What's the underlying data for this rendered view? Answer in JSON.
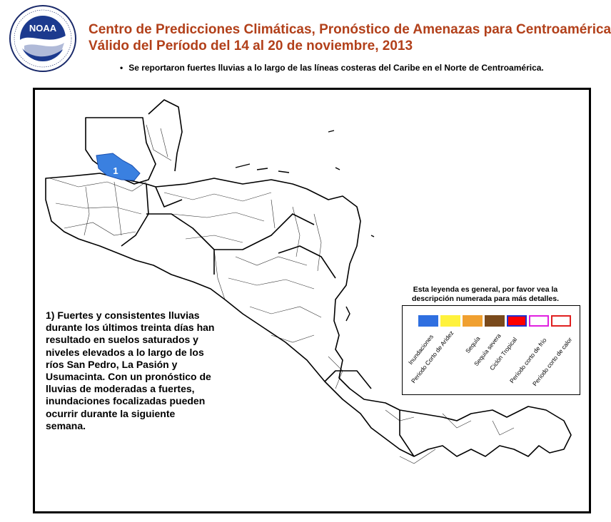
{
  "header": {
    "title_line1": "Centro de Predicciones Climáticas, Pronóstico de Amenazas para Centroamérica",
    "title_line2": "Válido del Período del 14 al 20 de noviembre, 2013",
    "bullet": "Se reportaron fuertes lluvias a lo largo de las líneas costeras del Caribe en el Norte de Centroamérica."
  },
  "logo": {
    "text": "NOAA",
    "ring_top": "NATIONAL OCEANIC AND ATMOSPHERIC ADMINISTRATION",
    "ring_bottom": "U.S. DEPARTMENT OF COMMERCE"
  },
  "map": {
    "hazard_label": "1",
    "hazard_color": "#3a80e0",
    "description": "1) Fuertes y consistentes lluvias durante los últimos treinta días han resultado en suelos saturados y niveles elevados a lo largo de los ríos San Pedro, La Pasión y Usumacinta. Con un pronóstico de lluvias de moderadas a fuertes, inundaciones focalizadas pueden ocurrir durante la siguiente semana."
  },
  "legend": {
    "title": "Esta leyenda es general, por favor vea la descripción numerada para más detalles.",
    "items": [
      {
        "label": "Inundaciones",
        "color": "#2f6fe0",
        "style": "fill"
      },
      {
        "label": "Periodo Corto de Aridez",
        "color": "#fff23c",
        "style": "fill"
      },
      {
        "label": "Sequía",
        "color": "#f0a030",
        "style": "fill"
      },
      {
        "label": "Sequía severa",
        "color": "#7a4a1c",
        "style": "fill"
      },
      {
        "label": "Ciclón Tropical",
        "color": "#ff0000",
        "style": "fill"
      },
      {
        "label": "Período corto de frío",
        "color": "#e020e0",
        "style": "outline"
      },
      {
        "label": "Período corto de calor",
        "color": "#e02020",
        "style": "outline"
      }
    ]
  }
}
